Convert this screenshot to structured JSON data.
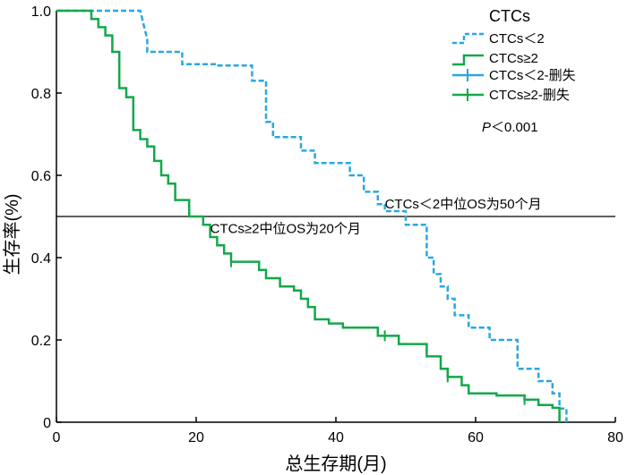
{
  "chart_data": {
    "type": "line",
    "subtype": "kaplan-meier",
    "xlabel": "总生存期(月)",
    "ylabel": "生存率(%)",
    "xlim": [
      0,
      80
    ],
    "ylim": [
      0,
      1.0
    ],
    "xticks": [
      "0",
      "20",
      "40",
      "60",
      "80"
    ],
    "xtick_values": [
      0,
      20,
      40,
      60,
      80
    ],
    "yticks": [
      "0",
      "0.2",
      "0.4",
      "0.6",
      "0.8",
      "1.0"
    ],
    "ytick_values": [
      0,
      0.2,
      0.4,
      0.6,
      0.8,
      1.0
    ],
    "legend": {
      "title": "CTCs",
      "entries": [
        "CTCs＜2",
        "CTCs≥2",
        "CTCs＜2-删失",
        "CTCs≥2-删失"
      ],
      "placement": "top-right"
    },
    "pvalue_prefix": "P",
    "pvalue_text": "＜0.001",
    "reference_line": {
      "y": 0.5
    },
    "annotations": [
      {
        "text": "CTCs＜2中位OS为50个月",
        "x": 47,
        "y": 0.52
      },
      {
        "text": "CTCs≥2中位OS为20个月",
        "x": 22,
        "y": 0.46
      }
    ],
    "series": [
      {
        "name": "CTCs＜2",
        "color": "#29a7e1",
        "style": "dashed",
        "points": [
          [
            0,
            1.0
          ],
          [
            12,
            1.0
          ],
          [
            13,
            0.93
          ],
          [
            13,
            0.9
          ],
          [
            18,
            0.9
          ],
          [
            18,
            0.87
          ],
          [
            23,
            0.87
          ],
          [
            23,
            0.867
          ],
          [
            28,
            0.867
          ],
          [
            28,
            0.83
          ],
          [
            30,
            0.83
          ],
          [
            30,
            0.8
          ],
          [
            30,
            0.73
          ],
          [
            31,
            0.73
          ],
          [
            31,
            0.693
          ],
          [
            35,
            0.693
          ],
          [
            35,
            0.66
          ],
          [
            37,
            0.66
          ],
          [
            37,
            0.63
          ],
          [
            42,
            0.63
          ],
          [
            42,
            0.6
          ],
          [
            44,
            0.6
          ],
          [
            44,
            0.56
          ],
          [
            46,
            0.56
          ],
          [
            46,
            0.53
          ],
          [
            47,
            0.53
          ],
          [
            47,
            0.513
          ],
          [
            50,
            0.513
          ],
          [
            50,
            0.48
          ],
          [
            53,
            0.48
          ],
          [
            53,
            0.45
          ],
          [
            53,
            0.43
          ],
          [
            53,
            0.4
          ],
          [
            54,
            0.4
          ],
          [
            54,
            0.36
          ],
          [
            55,
            0.36
          ],
          [
            55,
            0.33
          ],
          [
            56,
            0.33
          ],
          [
            56,
            0.3
          ],
          [
            57,
            0.3
          ],
          [
            57,
            0.26
          ],
          [
            59,
            0.26
          ],
          [
            59,
            0.23
          ],
          [
            62,
            0.23
          ],
          [
            62,
            0.2
          ],
          [
            66,
            0.2
          ],
          [
            66,
            0.13
          ],
          [
            69,
            0.13
          ],
          [
            69,
            0.1
          ],
          [
            71,
            0.1
          ],
          [
            71,
            0.07
          ],
          [
            72,
            0.07
          ],
          [
            72,
            0.033
          ],
          [
            73,
            0.033
          ],
          [
            73,
            0.0
          ]
        ]
      },
      {
        "name": "CTCs≥2",
        "color": "#12a84b",
        "style": "solid",
        "points": [
          [
            0,
            1.0
          ],
          [
            5,
            1.0
          ],
          [
            5,
            0.98
          ],
          [
            6,
            0.98
          ],
          [
            6,
            0.96
          ],
          [
            7,
            0.96
          ],
          [
            7,
            0.94
          ],
          [
            8,
            0.94
          ],
          [
            8,
            0.92
          ],
          [
            8,
            0.9
          ],
          [
            9,
            0.9
          ],
          [
            9,
            0.875
          ],
          [
            9,
            0.84
          ],
          [
            9,
            0.812
          ],
          [
            10,
            0.812
          ],
          [
            10,
            0.79
          ],
          [
            11,
            0.79
          ],
          [
            11,
            0.75
          ],
          [
            11,
            0.73
          ],
          [
            11,
            0.71
          ],
          [
            12,
            0.71
          ],
          [
            12,
            0.688
          ],
          [
            13,
            0.688
          ],
          [
            13,
            0.67
          ],
          [
            14,
            0.67
          ],
          [
            14,
            0.635
          ],
          [
            15,
            0.635
          ],
          [
            15,
            0.6
          ],
          [
            16,
            0.6
          ],
          [
            16,
            0.58
          ],
          [
            17,
            0.58
          ],
          [
            17,
            0.54
          ],
          [
            19,
            0.54
          ],
          [
            19,
            0.52
          ],
          [
            19,
            0.5
          ],
          [
            21,
            0.5
          ],
          [
            21,
            0.48
          ],
          [
            22,
            0.48
          ],
          [
            22,
            0.45
          ],
          [
            23,
            0.45
          ],
          [
            23,
            0.43
          ],
          [
            24,
            0.43
          ],
          [
            24,
            0.41
          ],
          [
            25,
            0.41
          ],
          [
            25,
            0.39
          ],
          [
            29,
            0.39
          ],
          [
            29,
            0.37
          ],
          [
            30,
            0.37
          ],
          [
            30,
            0.35
          ],
          [
            32,
            0.35
          ],
          [
            32,
            0.33
          ],
          [
            34,
            0.33
          ],
          [
            34,
            0.32
          ],
          [
            35,
            0.32
          ],
          [
            35,
            0.3
          ],
          [
            36,
            0.3
          ],
          [
            36,
            0.28
          ],
          [
            37,
            0.28
          ],
          [
            37,
            0.25
          ],
          [
            39,
            0.25
          ],
          [
            39,
            0.24
          ],
          [
            41,
            0.24
          ],
          [
            41,
            0.23
          ],
          [
            46,
            0.23
          ],
          [
            46,
            0.21
          ],
          [
            49,
            0.21
          ],
          [
            49,
            0.19
          ],
          [
            53,
            0.19
          ],
          [
            53,
            0.16
          ],
          [
            55,
            0.16
          ],
          [
            55,
            0.13
          ],
          [
            56,
            0.13
          ],
          [
            56,
            0.11
          ],
          [
            58,
            0.11
          ],
          [
            58,
            0.09
          ],
          [
            59,
            0.09
          ],
          [
            59,
            0.07
          ],
          [
            63,
            0.07
          ],
          [
            63,
            0.065
          ],
          [
            67,
            0.065
          ],
          [
            67,
            0.055
          ],
          [
            69,
            0.055
          ],
          [
            69,
            0.042
          ],
          [
            71,
            0.042
          ],
          [
            71,
            0.035
          ],
          [
            72,
            0.035
          ],
          [
            72,
            0.0
          ]
        ]
      }
    ],
    "censor_marks": [
      {
        "series": "CTCs≥2",
        "x": 25,
        "y": 0.39
      },
      {
        "series": "CTCs≥2",
        "x": 47,
        "y": 0.21
      },
      {
        "series": "CTCs≥2",
        "x": 56,
        "y": 0.11
      },
      {
        "series": "CTCs≥2",
        "x": 67,
        "y": 0.055
      }
    ]
  }
}
